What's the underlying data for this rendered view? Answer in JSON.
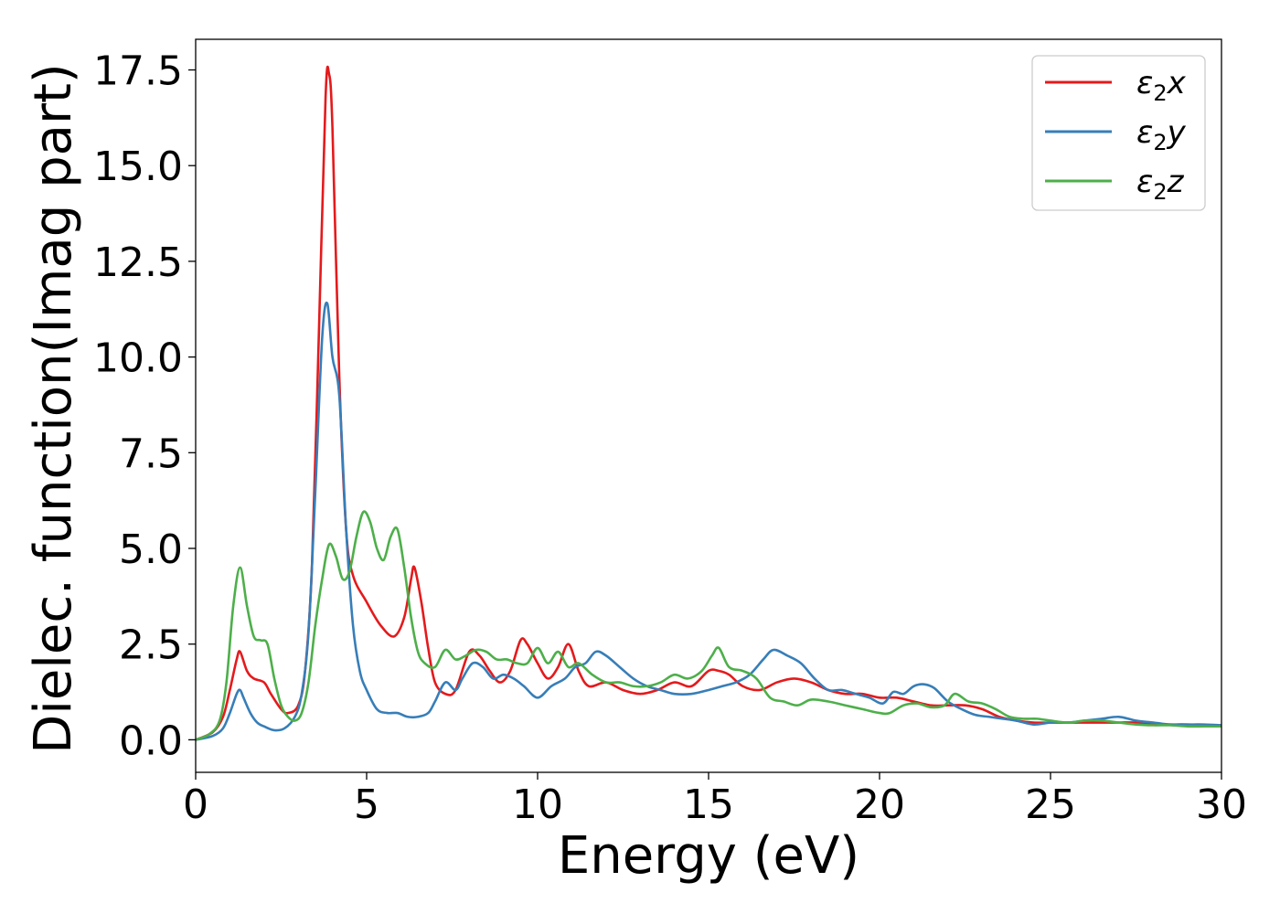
{
  "chart_data": {
    "type": "line",
    "title": "",
    "xlabel": "Energy (eV)",
    "ylabel": "Dielec. function(Imag part)",
    "xlim": [
      0,
      30
    ],
    "ylim": [
      -0.85,
      18.3
    ],
    "xticks": [
      0,
      5,
      10,
      15,
      20,
      25,
      30
    ],
    "xtick_labels": [
      "0",
      "5",
      "10",
      "15",
      "20",
      "25",
      "30"
    ],
    "yticks": [
      0.0,
      2.5,
      5.0,
      7.5,
      10.0,
      12.5,
      15.0,
      17.5
    ],
    "ytick_labels": [
      "0.0",
      "2.5",
      "5.0",
      "7.5",
      "10.0",
      "12.5",
      "15.0",
      "17.5"
    ],
    "grid": false,
    "legend_position": "top-right",
    "series": [
      {
        "name": "ε2x",
        "legend_base": "ε",
        "legend_sub": "2",
        "legend_suffix": "x",
        "color": "#e41a1c",
        "x": [
          0,
          0.5,
          0.8,
          1.0,
          1.2,
          1.3,
          1.5,
          1.7,
          2.0,
          2.2,
          2.5,
          2.7,
          3.0,
          3.2,
          3.4,
          3.6,
          3.8,
          3.9,
          4.0,
          4.2,
          4.4,
          4.6,
          5.0,
          5.4,
          5.8,
          6.1,
          6.3,
          6.4,
          6.6,
          6.8,
          7.0,
          7.3,
          7.6,
          8.0,
          8.3,
          8.6,
          8.9,
          9.2,
          9.5,
          9.7,
          10.0,
          10.3,
          10.6,
          10.9,
          11.2,
          11.5,
          12.0,
          12.5,
          13.0,
          13.5,
          14.0,
          14.5,
          15.0,
          15.3,
          15.6,
          16.0,
          16.5,
          17.0,
          17.5,
          18.0,
          18.5,
          19.0,
          19.5,
          20.0,
          20.5,
          21.0,
          21.5,
          22.0,
          22.5,
          23.0,
          23.5,
          24.0,
          24.5,
          25.0,
          25.5,
          26.0,
          26.5,
          27.0,
          27.5,
          28.0,
          28.5,
          29.0,
          29.5,
          30.0
        ],
        "y": [
          0.0,
          0.2,
          0.6,
          1.3,
          2.1,
          2.3,
          1.8,
          1.6,
          1.5,
          1.2,
          0.8,
          0.7,
          0.9,
          1.8,
          4.5,
          10.5,
          16.8,
          17.4,
          16.0,
          9.5,
          5.5,
          4.3,
          3.6,
          3.0,
          2.7,
          3.2,
          4.2,
          4.5,
          3.6,
          2.4,
          1.5,
          1.2,
          1.3,
          2.3,
          2.2,
          1.8,
          1.5,
          1.8,
          2.6,
          2.5,
          2.0,
          1.6,
          1.9,
          2.5,
          1.8,
          1.4,
          1.5,
          1.3,
          1.2,
          1.3,
          1.5,
          1.4,
          1.8,
          1.8,
          1.7,
          1.4,
          1.3,
          1.5,
          1.6,
          1.5,
          1.3,
          1.2,
          1.2,
          1.1,
          1.1,
          1.0,
          0.9,
          0.9,
          0.9,
          0.8,
          0.6,
          0.5,
          0.45,
          0.45,
          0.45,
          0.45,
          0.45,
          0.45,
          0.45,
          0.4,
          0.4,
          0.4,
          0.38,
          0.38
        ]
      },
      {
        "name": "ε2y",
        "legend_base": "ε",
        "legend_sub": "2",
        "legend_suffix": "y",
        "color": "#377eb8",
        "x": [
          0,
          0.5,
          0.8,
          1.0,
          1.2,
          1.3,
          1.4,
          1.6,
          1.8,
          2.0,
          2.3,
          2.6,
          2.9,
          3.1,
          3.3,
          3.5,
          3.7,
          3.85,
          4.0,
          4.2,
          4.4,
          4.6,
          4.8,
          5.0,
          5.3,
          5.6,
          5.9,
          6.2,
          6.5,
          6.8,
          7.0,
          7.3,
          7.6,
          7.8,
          8.1,
          8.4,
          8.7,
          9.0,
          9.3,
          9.6,
          10.0,
          10.4,
          10.8,
          11.1,
          11.4,
          11.7,
          12.0,
          12.4,
          12.8,
          13.2,
          13.6,
          14.0,
          14.5,
          15.0,
          15.4,
          15.8,
          16.2,
          16.6,
          16.9,
          17.3,
          17.7,
          18.1,
          18.5,
          18.9,
          19.3,
          19.7,
          20.1,
          20.4,
          20.7,
          21.0,
          21.3,
          21.6,
          22.0,
          22.4,
          22.8,
          23.2,
          23.6,
          24.0,
          24.5,
          25.0,
          25.5,
          26.0,
          26.5,
          27.0,
          27.5,
          28.0,
          28.5,
          29.0,
          29.5,
          30.0
        ],
        "y": [
          0.0,
          0.1,
          0.3,
          0.7,
          1.2,
          1.3,
          1.1,
          0.7,
          0.45,
          0.35,
          0.25,
          0.3,
          0.6,
          1.2,
          2.8,
          6.5,
          10.5,
          11.4,
          10.0,
          9.0,
          5.5,
          3.0,
          1.8,
          1.3,
          0.8,
          0.7,
          0.7,
          0.6,
          0.6,
          0.7,
          1.0,
          1.5,
          1.3,
          1.6,
          2.0,
          1.9,
          1.6,
          1.7,
          1.6,
          1.4,
          1.1,
          1.4,
          1.6,
          1.9,
          2.0,
          2.3,
          2.2,
          1.9,
          1.6,
          1.4,
          1.3,
          1.2,
          1.2,
          1.3,
          1.4,
          1.5,
          1.7,
          2.1,
          2.35,
          2.2,
          2.0,
          1.6,
          1.3,
          1.3,
          1.2,
          1.1,
          0.95,
          1.25,
          1.2,
          1.4,
          1.45,
          1.35,
          1.0,
          0.8,
          0.65,
          0.6,
          0.55,
          0.5,
          0.4,
          0.45,
          0.45,
          0.5,
          0.55,
          0.6,
          0.5,
          0.45,
          0.4,
          0.4,
          0.4,
          0.38
        ]
      },
      {
        "name": "ε2z",
        "legend_base": "ε",
        "legend_sub": "2",
        "legend_suffix": "z",
        "color": "#4daf4a",
        "x": [
          0,
          0.4,
          0.7,
          0.9,
          1.1,
          1.3,
          1.5,
          1.7,
          1.9,
          2.1,
          2.3,
          2.5,
          2.7,
          2.9,
          3.1,
          3.3,
          3.5,
          3.7,
          3.9,
          4.1,
          4.3,
          4.5,
          4.7,
          4.9,
          5.1,
          5.3,
          5.5,
          5.7,
          5.9,
          6.1,
          6.3,
          6.5,
          6.7,
          7.0,
          7.3,
          7.6,
          7.9,
          8.2,
          8.5,
          8.8,
          9.1,
          9.4,
          9.7,
          10.0,
          10.3,
          10.6,
          10.9,
          11.2,
          11.6,
          12.0,
          12.4,
          12.8,
          13.2,
          13.6,
          14.0,
          14.4,
          14.8,
          15.1,
          15.3,
          15.6,
          16.0,
          16.4,
          16.8,
          17.2,
          17.6,
          18.0,
          18.5,
          19.0,
          19.5,
          20.0,
          20.3,
          20.7,
          21.1,
          21.5,
          21.9,
          22.2,
          22.6,
          23.0,
          23.4,
          23.8,
          24.2,
          24.6,
          25.0,
          25.5,
          26.0,
          26.5,
          27.0,
          27.5,
          28.0,
          28.5,
          29.0,
          29.5,
          30.0
        ],
        "y": [
          0.0,
          0.15,
          0.5,
          1.5,
          3.5,
          4.5,
          3.5,
          2.7,
          2.6,
          2.5,
          1.6,
          0.9,
          0.6,
          0.5,
          0.7,
          1.5,
          3.0,
          4.2,
          5.1,
          4.8,
          4.2,
          4.4,
          5.3,
          5.95,
          5.7,
          5.0,
          4.7,
          5.3,
          5.5,
          4.5,
          3.2,
          2.3,
          2.0,
          1.9,
          2.35,
          2.1,
          2.2,
          2.35,
          2.3,
          2.1,
          2.1,
          2.0,
          2.0,
          2.4,
          2.0,
          2.3,
          1.9,
          2.0,
          1.7,
          1.5,
          1.5,
          1.4,
          1.4,
          1.5,
          1.7,
          1.6,
          1.8,
          2.2,
          2.4,
          1.9,
          1.8,
          1.6,
          1.1,
          1.0,
          0.9,
          1.05,
          1.0,
          0.9,
          0.8,
          0.7,
          0.7,
          0.9,
          0.95,
          0.85,
          0.9,
          1.2,
          1.0,
          0.95,
          0.8,
          0.6,
          0.55,
          0.55,
          0.5,
          0.45,
          0.5,
          0.5,
          0.45,
          0.4,
          0.38,
          0.38,
          0.35,
          0.35,
          0.35
        ]
      }
    ]
  }
}
